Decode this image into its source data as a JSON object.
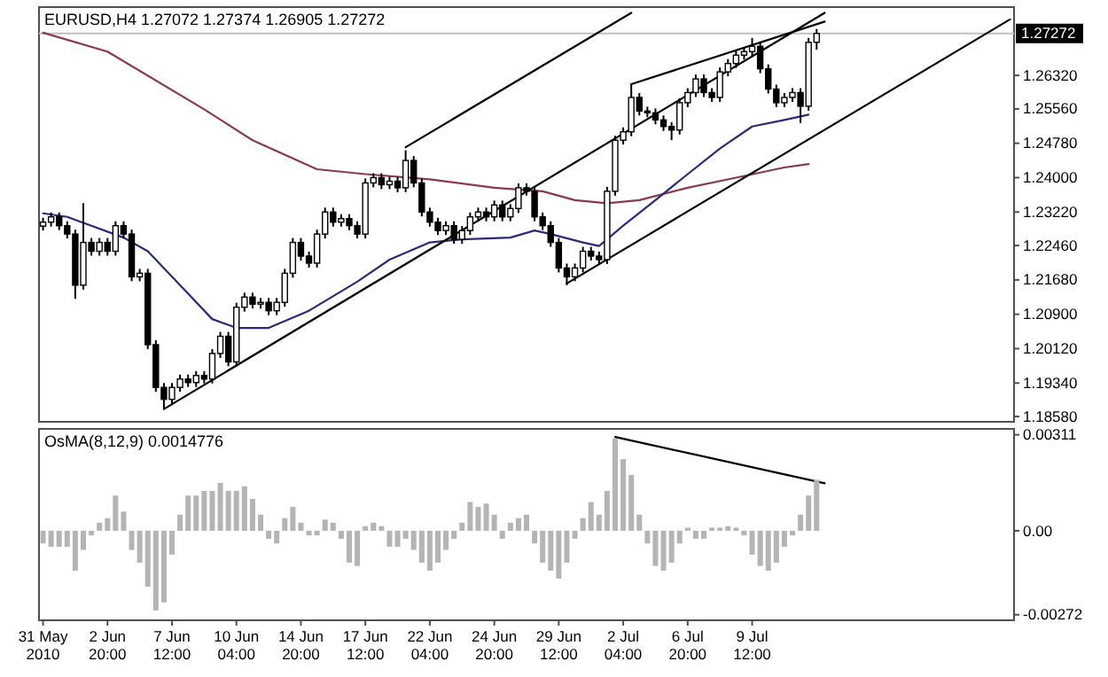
{
  "chart_data": [
    {
      "type": "candlestick",
      "title": "EURUSD,H4  1.27072 1.27374 1.26905 1.27272",
      "color": "#000000",
      "categories": [
        null,
        null,
        null,
        null,
        null,
        null,
        null,
        null,
        null,
        null,
        null,
        null,
        null,
        null,
        null,
        null,
        null,
        null,
        null,
        null,
        null,
        null,
        null,
        null,
        null,
        null,
        null,
        null,
        null,
        null,
        null,
        null,
        null,
        null,
        null,
        null,
        null,
        null,
        null,
        null,
        null,
        null,
        null,
        null,
        null,
        null,
        null,
        null,
        null,
        null,
        null,
        null,
        null,
        null,
        null,
        null,
        null,
        null,
        null,
        null,
        null,
        null,
        null,
        null,
        null,
        null,
        null,
        null,
        null,
        null,
        null,
        null,
        null,
        null,
        null,
        null,
        null,
        null,
        null,
        null,
        null,
        null,
        null,
        null,
        null,
        null,
        null,
        null,
        null,
        null,
        null,
        null,
        null,
        null,
        null,
        null,
        null,
        null,
        null,
        null,
        null,
        null,
        null,
        null,
        null,
        null,
        null,
        null,
        null,
        null,
        null,
        null,
        null,
        null,
        null,
        null,
        null,
        null,
        null,
        null,
        null
      ],
      "ohlc": [
        [
          1.229,
          1.2309,
          1.228,
          1.2299
        ],
        [
          1.2299,
          1.2321,
          1.2289,
          1.2311
        ],
        [
          1.2311,
          1.2321,
          1.2281,
          1.2291
        ],
        [
          1.2291,
          1.2301,
          1.2262,
          1.2272
        ],
        [
          1.2272,
          1.2282,
          1.2125,
          1.2156
        ],
        [
          1.2156,
          1.2342,
          1.2146,
          1.2253
        ],
        [
          1.2253,
          1.2263,
          1.2223,
          1.2233
        ],
        [
          1.2233,
          1.2263,
          1.2223,
          1.2253
        ],
        [
          1.2253,
          1.2263,
          1.2223,
          1.2233
        ],
        [
          1.2233,
          1.2301,
          1.2223,
          1.2291
        ],
        [
          1.2291,
          1.2301,
          1.2262,
          1.2272
        ],
        [
          1.2272,
          1.2282,
          1.2165,
          1.2175
        ],
        [
          1.2175,
          1.2193,
          1.2165,
          1.2183
        ],
        [
          1.2183,
          1.2193,
          1.2011,
          1.2021
        ],
        [
          1.2021,
          1.2031,
          1.1914,
          1.1924
        ],
        [
          1.1924,
          1.1934,
          1.1874,
          1.1897
        ],
        [
          1.1897,
          1.1934,
          1.1887,
          1.1924
        ],
        [
          1.1924,
          1.1953,
          1.1914,
          1.1943
        ],
        [
          1.1943,
          1.1953,
          1.1925,
          1.1935
        ],
        [
          1.1935,
          1.1961,
          1.1925,
          1.1951
        ],
        [
          1.1951,
          1.1961,
          1.1933,
          1.1943
        ],
        [
          1.1943,
          1.2011,
          1.1933,
          1.2001
        ],
        [
          1.2001,
          1.205,
          1.1991,
          1.204
        ],
        [
          1.204,
          1.205,
          1.1972,
          1.1982
        ],
        [
          1.1982,
          1.2116,
          1.1972,
          1.2106
        ],
        [
          1.2106,
          1.2139,
          1.2096,
          1.2129
        ],
        [
          1.2129,
          1.2139,
          1.2103,
          1.2113
        ],
        [
          1.2113,
          1.2127,
          1.2103,
          1.2117
        ],
        [
          1.2117,
          1.2127,
          1.2088,
          1.2098
        ],
        [
          1.2098,
          1.2127,
          1.2088,
          1.2117
        ],
        [
          1.2117,
          1.2193,
          1.2107,
          1.2183
        ],
        [
          1.2183,
          1.2263,
          1.2173,
          1.2253
        ],
        [
          1.2253,
          1.2263,
          1.2212,
          1.2222
        ],
        [
          1.2222,
          1.2232,
          1.2196,
          1.2206
        ],
        [
          1.2206,
          1.2282,
          1.2196,
          1.2272
        ],
        [
          1.2272,
          1.2332,
          1.2262,
          1.2322
        ],
        [
          1.2322,
          1.2332,
          1.2289,
          1.2299
        ],
        [
          1.2299,
          1.2317,
          1.2289,
          1.2307
        ],
        [
          1.2307,
          1.2317,
          1.2281,
          1.2291
        ],
        [
          1.2291,
          1.2301,
          1.2262,
          1.2272
        ],
        [
          1.2272,
          1.2398,
          1.2262,
          1.2388
        ],
        [
          1.2388,
          1.241,
          1.2378,
          1.24
        ],
        [
          1.24,
          1.241,
          1.2374,
          1.2384
        ],
        [
          1.2384,
          1.2402,
          1.2374,
          1.2392
        ],
        [
          1.2392,
          1.2402,
          1.2367,
          1.2377
        ],
        [
          1.2377,
          1.2462,
          1.2367,
          1.2439
        ],
        [
          1.2439,
          1.2449,
          1.2378,
          1.2388
        ],
        [
          1.2388,
          1.2398,
          1.2312,
          1.2322
        ],
        [
          1.2322,
          1.2332,
          1.2289,
          1.2299
        ],
        [
          1.2299,
          1.2309,
          1.227,
          1.228
        ],
        [
          1.228,
          1.2301,
          1.227,
          1.2291
        ],
        [
          1.2291,
          1.2301,
          1.225,
          1.226
        ],
        [
          1.226,
          1.229,
          1.225,
          1.228
        ],
        [
          1.228,
          1.2321,
          1.227,
          1.2311
        ],
        [
          1.2311,
          1.2332,
          1.2301,
          1.2322
        ],
        [
          1.2322,
          1.2332,
          1.2301,
          1.2311
        ],
        [
          1.2311,
          1.2348,
          1.2301,
          1.2338
        ],
        [
          1.2338,
          1.2348,
          1.2301,
          1.2311
        ],
        [
          1.2311,
          1.234,
          1.2301,
          1.233
        ],
        [
          1.233,
          1.2387,
          1.232,
          1.2377
        ],
        [
          1.2377,
          1.2387,
          1.2359,
          1.2369
        ],
        [
          1.2369,
          1.2379,
          1.2301,
          1.2311
        ],
        [
          1.2311,
          1.2321,
          1.2281,
          1.2291
        ],
        [
          1.2291,
          1.2301,
          1.2243,
          1.2253
        ],
        [
          1.2253,
          1.2263,
          1.2185,
          1.2195
        ],
        [
          1.2195,
          1.2205,
          1.2156,
          1.2175
        ],
        [
          1.2175,
          1.2205,
          1.2165,
          1.2195
        ],
        [
          1.2195,
          1.2243,
          1.2185,
          1.2233
        ],
        [
          1.2233,
          1.2243,
          1.2212,
          1.2222
        ],
        [
          1.2222,
          1.2232,
          1.2204,
          1.2214
        ],
        [
          1.2214,
          1.2379,
          1.2204,
          1.2369
        ],
        [
          1.2369,
          1.2495,
          1.2359,
          1.2485
        ],
        [
          1.2485,
          1.2514,
          1.2475,
          1.2504
        ],
        [
          1.2504,
          1.2613,
          1.2494,
          1.2582
        ],
        [
          1.2582,
          1.2592,
          1.2541,
          1.2551
        ],
        [
          1.2551,
          1.2561,
          1.2537,
          1.2547
        ],
        [
          1.2547,
          1.2557,
          1.2521,
          1.2531
        ],
        [
          1.2531,
          1.2541,
          1.2506,
          1.2516
        ],
        [
          1.2516,
          1.2526,
          1.2485,
          1.2508
        ],
        [
          1.2508,
          1.258,
          1.2498,
          1.257
        ],
        [
          1.257,
          1.2603,
          1.256,
          1.2593
        ],
        [
          1.2593,
          1.2634,
          1.2583,
          1.2624
        ],
        [
          1.2624,
          1.2634,
          1.2583,
          1.2593
        ],
        [
          1.2593,
          1.2603,
          1.2572,
          1.2582
        ],
        [
          1.2582,
          1.265,
          1.2572,
          1.264
        ],
        [
          1.264,
          1.2669,
          1.263,
          1.2659
        ],
        [
          1.2659,
          1.2688,
          1.2649,
          1.2678
        ],
        [
          1.2678,
          1.2696,
          1.2668,
          1.2686
        ],
        [
          1.2686,
          1.2717,
          1.2676,
          1.2698
        ],
        [
          1.2698,
          1.2708,
          1.2637,
          1.2647
        ],
        [
          1.2647,
          1.2657,
          1.2591,
          1.2601
        ],
        [
          1.2601,
          1.2611,
          1.256,
          1.257
        ],
        [
          1.257,
          1.2592,
          1.256,
          1.2582
        ],
        [
          1.2582,
          1.2603,
          1.2572,
          1.2593
        ],
        [
          1.2593,
          1.2603,
          1.2524,
          1.2562
        ],
        [
          1.2562,
          1.2717,
          1.2552,
          1.2707
        ],
        [
          1.27072,
          1.27374,
          1.26905,
          1.27272
        ],
        null,
        null,
        null,
        null,
        null,
        null,
        null,
        null,
        null,
        null,
        null,
        null,
        null,
        null,
        null,
        null,
        null,
        null,
        null,
        null,
        null,
        null,
        null,
        null
      ],
      "series": [
        {
          "type": "line",
          "color": "#8b3a4a",
          "values": [
            1.2729,
            null,
            null,
            null,
            null,
            null,
            null,
            null,
            1.2686,
            null,
            null,
            null,
            null,
            null,
            null,
            null,
            null,
            null,
            null,
            null,
            1.2555,
            null,
            null,
            null,
            null,
            null,
            1.2485,
            null,
            null,
            null,
            null,
            null,
            null,
            null,
            1.2419,
            null,
            null,
            null,
            null,
            null,
            1.2408,
            null,
            null,
            null,
            null,
            null,
            null,
            null,
            1.2396,
            null,
            null,
            null,
            null,
            null,
            null,
            null,
            1.2377,
            null,
            null,
            null,
            null,
            null,
            1.2369,
            null,
            null,
            null,
            1.2349,
            null,
            null,
            null,
            1.2342,
            null,
            null,
            null,
            1.2349,
            null,
            null,
            null,
            null,
            null,
            1.2377,
            null,
            null,
            null,
            null,
            null,
            1.24,
            null,
            null,
            null,
            null,
            null,
            1.2423,
            null,
            null,
            1.2431,
            null,
            null,
            null,
            null,
            null,
            null,
            null,
            null,
            null,
            null,
            null,
            null,
            null,
            null,
            null,
            null,
            null,
            null,
            null,
            null,
            null,
            null,
            null,
            null,
            null
          ]
        },
        {
          "type": "line",
          "color": "#2a2a7a",
          "values": [
            1.2319,
            null,
            null,
            1.2311,
            null,
            null,
            null,
            null,
            null,
            null,
            1.2264,
            null,
            null,
            1.2233,
            null,
            null,
            null,
            1.2156,
            null,
            null,
            null,
            1.2079,
            null,
            null,
            1.2059,
            null,
            null,
            null,
            1.2059,
            null,
            null,
            null,
            null,
            1.2098,
            null,
            null,
            null,
            null,
            null,
            1.2164,
            null,
            null,
            null,
            1.2214,
            null,
            null,
            null,
            null,
            1.2253,
            null,
            null,
            null,
            1.226,
            null,
            null,
            null,
            null,
            null,
            1.2264,
            null,
            null,
            1.228,
            null,
            1.2272,
            null,
            null,
            null,
            1.2253,
            null,
            1.2245,
            null,
            null,
            1.2291,
            null,
            null,
            null,
            1.2349,
            null,
            null,
            null,
            1.2408,
            null,
            null,
            null,
            1.2466,
            null,
            null,
            null,
            1.2516,
            null,
            null,
            null,
            1.2531,
            null,
            null,
            1.2543,
            null,
            null,
            null,
            null,
            null,
            null,
            null,
            null,
            null,
            null,
            null,
            null,
            null,
            null,
            null,
            null,
            null,
            null,
            null,
            null,
            null,
            null,
            null,
            null,
            null
          ]
        },
        {
          "type": "line",
          "color": "#000000",
          "values": [
            null,
            null,
            null,
            null,
            null,
            null,
            null,
            null,
            null,
            null,
            null,
            null,
            null,
            null,
            null,
            1.1875,
            null,
            null,
            null,
            null,
            null,
            null,
            null,
            null,
            null,
            null,
            null,
            null,
            null,
            null,
            null,
            null,
            null,
            null,
            null,
            null,
            null,
            null,
            null,
            null,
            null,
            null,
            null,
            null,
            null,
            null,
            null,
            null,
            null,
            null,
            null,
            null,
            null,
            null,
            null,
            null,
            null,
            null,
            null,
            null,
            null,
            null,
            null,
            null,
            null,
            null,
            null,
            null,
            null,
            null,
            null,
            null,
            null,
            null,
            null,
            null,
            null,
            null,
            null,
            null,
            null,
            null,
            null,
            null,
            null,
            null,
            null,
            null,
            null,
            null,
            null,
            null,
            null,
            null,
            null,
            null,
            null,
            1.2774,
            null,
            null,
            null,
            null,
            null,
            null,
            null,
            null,
            null,
            null,
            null,
            null,
            null,
            null,
            null,
            null,
            null,
            null,
            null,
            null,
            null,
            null,
            null
          ]
        },
        {
          "type": "line",
          "color": "#000000",
          "values": [
            null,
            null,
            null,
            null,
            null,
            null,
            null,
            null,
            null,
            null,
            null,
            null,
            null,
            null,
            null,
            null,
            null,
            null,
            null,
            null,
            null,
            null,
            null,
            null,
            null,
            null,
            null,
            null,
            null,
            null,
            null,
            null,
            null,
            null,
            null,
            null,
            null,
            null,
            null,
            null,
            null,
            null,
            null,
            null,
            null,
            1.2469,
            null,
            null,
            null,
            null,
            null,
            null,
            null,
            null,
            null,
            null,
            null,
            null,
            null,
            null,
            null,
            null,
            null,
            null,
            null,
            null,
            null,
            null,
            null,
            null,
            null,
            null,
            null,
            1.2774,
            null,
            null,
            null,
            null,
            null,
            null,
            null,
            null,
            null,
            null,
            null,
            null,
            null,
            null,
            null,
            null,
            null,
            null,
            null,
            null,
            null,
            null,
            null,
            null,
            null,
            null,
            null,
            null,
            null,
            null,
            null,
            null,
            null,
            null,
            null,
            null,
            null,
            null,
            null,
            null,
            null,
            null,
            null,
            null,
            null,
            null,
            null
          ]
        },
        {
          "type": "line",
          "color": "#000000",
          "values": [
            null,
            null,
            null,
            null,
            null,
            null,
            null,
            null,
            null,
            null,
            null,
            null,
            null,
            null,
            null,
            null,
            null,
            null,
            null,
            null,
            null,
            null,
            null,
            null,
            null,
            null,
            null,
            null,
            null,
            null,
            null,
            null,
            null,
            null,
            null,
            null,
            null,
            null,
            null,
            null,
            null,
            null,
            null,
            null,
            null,
            null,
            null,
            null,
            null,
            null,
            null,
            null,
            null,
            null,
            null,
            null,
            null,
            null,
            null,
            null,
            null,
            null,
            null,
            null,
            null,
            1.216,
            null,
            null,
            null,
            null,
            null,
            null,
            null,
            null,
            null,
            null,
            null,
            null,
            null,
            null,
            null,
            null,
            null,
            null,
            null,
            null,
            null,
            null,
            null,
            null,
            null,
            null,
            null,
            null,
            null,
            null,
            null,
            null,
            null,
            null,
            null,
            null,
            null,
            null,
            null,
            null,
            null,
            null,
            null,
            null,
            null,
            null,
            null,
            null,
            null,
            null,
            null,
            null,
            null,
            null,
            1.2759
          ]
        },
        {
          "type": "line",
          "color": "#000000",
          "values": [
            null,
            null,
            null,
            null,
            null,
            null,
            null,
            null,
            null,
            null,
            null,
            null,
            null,
            null,
            null,
            null,
            null,
            null,
            null,
            null,
            null,
            null,
            null,
            null,
            null,
            null,
            null,
            null,
            null,
            null,
            null,
            null,
            null,
            null,
            null,
            null,
            null,
            null,
            null,
            null,
            null,
            null,
            null,
            null,
            null,
            null,
            null,
            null,
            null,
            null,
            null,
            null,
            null,
            null,
            null,
            null,
            null,
            null,
            null,
            null,
            null,
            null,
            null,
            null,
            null,
            null,
            null,
            null,
            null,
            null,
            null,
            null,
            null,
            1.2612,
            null,
            null,
            null,
            null,
            null,
            null,
            null,
            null,
            null,
            null,
            null,
            null,
            null,
            null,
            null,
            null,
            null,
            null,
            null,
            null,
            null,
            null,
            null,
            1.2754,
            null,
            null,
            null,
            null,
            null,
            null,
            null,
            null,
            null,
            null,
            null,
            null,
            null,
            null,
            null,
            null,
            null,
            null,
            null,
            null,
            null,
            null,
            null
          ]
        }
      ],
      "ylim": [
        1.1846,
        1.2787
      ],
      "yticks": [
        {
          "value": 1.1858,
          "label": "1.18580"
        },
        {
          "value": 1.1934,
          "label": "1.19340"
        },
        {
          "value": 1.2012,
          "label": "1.20120"
        },
        {
          "value": 1.209,
          "label": "1.20900"
        },
        {
          "value": 1.2168,
          "label": "1.21680"
        },
        {
          "value": 1.2246,
          "label": "1.22460"
        },
        {
          "value": 1.2322,
          "label": "1.23220"
        },
        {
          "value": 1.24,
          "label": "1.24000"
        },
        {
          "value": 1.2478,
          "label": "1.24780"
        },
        {
          "value": 1.2556,
          "label": "1.25560"
        },
        {
          "value": 1.2632,
          "label": "1.26320"
        }
      ],
      "ref_lines": [
        {
          "axis": "y",
          "value": 1.27272,
          "label": "1.27272",
          "color": "#c0c0c0"
        }
      ],
      "tick_labels": "y"
    },
    {
      "type": "bar",
      "title": "OsMA(8,12,9) 0.0014776",
      "color": "#b4b4b4",
      "categories": [
        "31 May 2010",
        null,
        null,
        null,
        null,
        null,
        null,
        null,
        "2 Jun 20:00",
        null,
        null,
        null,
        null,
        null,
        null,
        null,
        "7 Jun 12:00",
        null,
        null,
        null,
        null,
        null,
        null,
        null,
        "10 Jun 04:00",
        null,
        null,
        null,
        null,
        null,
        null,
        null,
        "14 Jun 20:00",
        null,
        null,
        null,
        null,
        null,
        null,
        null,
        "17 Jun 12:00",
        null,
        null,
        null,
        null,
        null,
        null,
        null,
        "22 Jun 04:00",
        null,
        null,
        null,
        null,
        null,
        null,
        null,
        "24 Jun 20:00",
        null,
        null,
        null,
        null,
        null,
        null,
        null,
        "29 Jun 12:00",
        null,
        null,
        null,
        null,
        null,
        null,
        null,
        "2 Jul 04:00",
        null,
        null,
        null,
        null,
        null,
        null,
        null,
        "6 Jul 20:00",
        null,
        null,
        null,
        null,
        null,
        null,
        null,
        "9 Jul 12:00",
        null,
        null,
        null,
        null,
        null,
        null,
        null,
        null,
        null,
        null,
        null,
        null,
        null,
        null,
        null,
        null,
        null,
        null,
        null,
        null,
        null,
        null,
        null,
        null,
        null,
        null,
        null,
        null,
        null,
        null,
        null,
        null
      ],
      "values": [
        -0.00041,
        -0.00052,
        -0.00052,
        -0.00052,
        -0.00129,
        -0.00062,
        -0.00015,
        0.00026,
        0.00041,
        0.00114,
        0.00062,
        -0.00062,
        -0.00103,
        -0.00181,
        -0.00258,
        -0.00232,
        -0.00077,
        0.00052,
        0.00114,
        0.00114,
        0.00129,
        0.00129,
        0.00155,
        0.00129,
        0.00129,
        0.00144,
        0.00103,
        0.00052,
        -0.00026,
        -0.00041,
        0.00041,
        0.00077,
        0.00026,
        -0.00015,
        -0.00015,
        0.00036,
        0.00026,
        -0.00026,
        -0.00103,
        -0.00114,
        0.00015,
        0.00026,
        0.00015,
        -0.00052,
        -0.00052,
        -0.00026,
        -0.00062,
        -0.00103,
        -0.00129,
        -0.00103,
        -0.00062,
        -0.00026,
        0.00026,
        0.00093,
        0.00077,
        0.00088,
        0.00052,
        -0.00026,
        0.00026,
        0.00041,
        0.00052,
        -0.00041,
        -0.00103,
        -0.00129,
        -0.00155,
        -0.00103,
        -0.00026,
        0.00041,
        0.00093,
        0.00052,
        0.00129,
        0.00299,
        0.00232,
        0.00181,
        0.00052,
        -0.00041,
        -0.00114,
        -0.00129,
        -0.00103,
        -0.00041,
        0.0001,
        -0.00026,
        -0.00026,
        0.0001,
        0.0001,
        0.00015,
        0.0001,
        -0.00015,
        -0.00077,
        -0.00114,
        -0.00129,
        -0.00103,
        -0.00052,
        -0.00015,
        0.00052,
        0.00114,
        0.00165,
        null,
        null,
        null,
        null,
        null,
        null,
        null,
        null,
        null,
        null,
        null,
        null,
        null,
        null,
        null,
        null,
        null,
        null,
        null,
        null,
        null,
        null,
        null,
        null
      ],
      "series": [
        {
          "type": "line",
          "color": "#000000",
          "values": [
            null,
            null,
            null,
            null,
            null,
            null,
            null,
            null,
            null,
            null,
            null,
            null,
            null,
            null,
            null,
            null,
            null,
            null,
            null,
            null,
            null,
            null,
            null,
            null,
            null,
            null,
            null,
            null,
            null,
            null,
            null,
            null,
            null,
            null,
            null,
            null,
            null,
            null,
            null,
            null,
            null,
            null,
            null,
            null,
            null,
            null,
            null,
            null,
            null,
            null,
            null,
            null,
            null,
            null,
            null,
            null,
            null,
            null,
            null,
            null,
            null,
            null,
            null,
            null,
            null,
            null,
            null,
            null,
            null,
            null,
            null,
            0.00304,
            null,
            null,
            null,
            null,
            null,
            null,
            null,
            null,
            null,
            null,
            null,
            null,
            null,
            null,
            null,
            null,
            null,
            null,
            null,
            null,
            null,
            null,
            null,
            null,
            null,
            0.00154,
            null,
            null,
            null,
            null,
            null,
            null,
            null,
            null,
            null,
            null,
            null,
            null,
            null,
            null,
            null,
            null,
            null,
            null,
            null,
            null,
            null,
            null,
            null
          ]
        }
      ],
      "ylim": [
        -0.0029,
        0.0033
      ],
      "yticks": [
        {
          "value": 0.00311,
          "label": "0.00311"
        },
        {
          "value": 0,
          "label": "0.00"
        },
        {
          "value": -0.00272,
          "label": "-0.00272"
        }
      ]
    }
  ]
}
